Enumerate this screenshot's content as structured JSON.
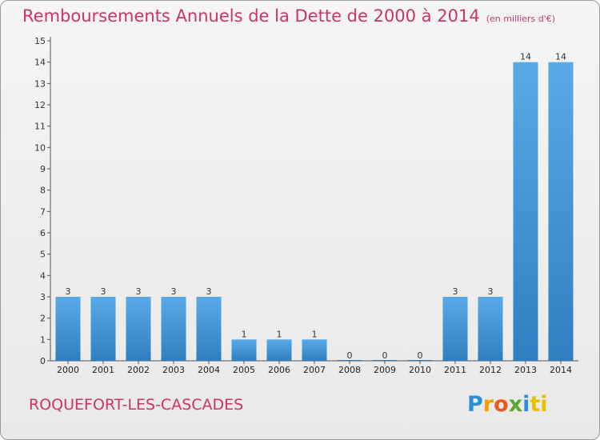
{
  "header": {
    "title": "Remboursements Annuels de la Dette de 2000 à 2014",
    "subtitle": "(en milliers d'€)"
  },
  "footer": {
    "city": "ROQUEFORT-LES-CASCADES",
    "brand_letters": [
      "P",
      "r",
      "o",
      "x",
      "i",
      "ti"
    ]
  },
  "colors": {
    "bar_top": "#5aaae8",
    "bar_bottom": "#2f7fc0",
    "title": "#cc3366"
  },
  "chart_data": {
    "type": "bar",
    "title": "Remboursements Annuels de la Dette de 2000 à 2014",
    "subtitle": "(en milliers d'€)",
    "xlabel": "",
    "ylabel": "",
    "categories": [
      "2000",
      "2001",
      "2002",
      "2003",
      "2004",
      "2005",
      "2006",
      "2007",
      "2008",
      "2009",
      "2010",
      "2011",
      "2012",
      "2013",
      "2014"
    ],
    "values": [
      3,
      3,
      3,
      3,
      3,
      1,
      1,
      1,
      0,
      0,
      0,
      3,
      3,
      14,
      14
    ],
    "ylim": [
      0,
      15
    ],
    "yticks": [
      0,
      1,
      2,
      3,
      4,
      5,
      6,
      7,
      8,
      9,
      10,
      11,
      12,
      13,
      14,
      15
    ],
    "grid": false
  }
}
